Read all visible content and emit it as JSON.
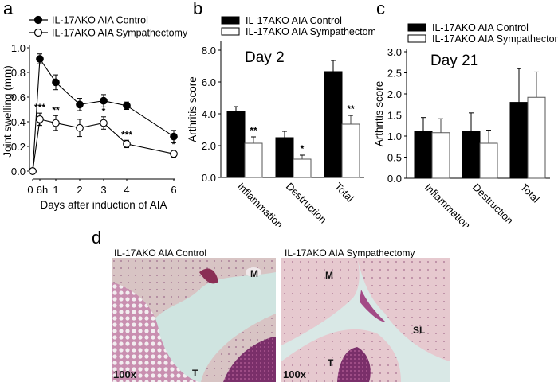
{
  "panels": {
    "a": {
      "letter": "a"
    },
    "b": {
      "letter": "b"
    },
    "c": {
      "letter": "c"
    },
    "d": {
      "letter": "d"
    }
  },
  "legend": {
    "control": "IL-17AKO AIA Control",
    "sympathectomy": "IL-17AKO AIA Sympathectomy"
  },
  "colors": {
    "control": "#000000",
    "sympathectomy": "#ffffff",
    "axis": "#000000"
  },
  "chart_data": [
    {
      "id": "a",
      "type": "line",
      "title": "",
      "xlabel": "Days after induction of AIA",
      "ylabel": "Joint swelling (mm)",
      "x_tick_labels": [
        "0",
        "6h",
        "1",
        "2",
        "3",
        "4",
        "6"
      ],
      "y_tick_labels": [
        "0.0",
        "0.2",
        "0.4",
        "0.6",
        "0.8",
        "1.0"
      ],
      "ylim": [
        0,
        1.0
      ],
      "legend_position": "top-left",
      "series": [
        {
          "name": "IL-17AKO AIA Control",
          "marker": "filled-circle",
          "x": [
            "0",
            "6h",
            "1",
            "2",
            "3",
            "4",
            "6"
          ],
          "values": [
            0.0,
            0.91,
            0.72,
            0.54,
            0.57,
            0.53,
            0.28
          ],
          "errors": [
            0.0,
            0.04,
            0.06,
            0.05,
            0.05,
            0.03,
            0.05
          ]
        },
        {
          "name": "IL-17AKO AIA Sympathectomy",
          "marker": "open-circle",
          "x": [
            "0",
            "6h",
            "1",
            "2",
            "3",
            "4",
            "6"
          ],
          "values": [
            0.0,
            0.42,
            0.39,
            0.35,
            0.39,
            0.22,
            0.14
          ],
          "errors": [
            0.0,
            0.05,
            0.06,
            0.07,
            0.05,
            0.03,
            0.03
          ]
        }
      ],
      "annotations": [
        {
          "x": "6h",
          "text": "***"
        },
        {
          "x": "1",
          "text": "**"
        },
        {
          "x": "3",
          "text": "*"
        },
        {
          "x": "4",
          "text": "***"
        },
        {
          "x": "6",
          "text": "*"
        }
      ]
    },
    {
      "id": "b",
      "type": "bar",
      "title": "Day 2",
      "xlabel": "",
      "ylabel": "Arthritis score",
      "categories": [
        "Inflammation",
        "Destruction",
        "Total"
      ],
      "y_tick_labels": [
        "0.0",
        "2.0",
        "4.0",
        "6.0",
        "8.0"
      ],
      "ylim": [
        0,
        8.0
      ],
      "legend_position": "top",
      "series": [
        {
          "name": "IL-17AKO AIA Control",
          "values": [
            4.15,
            2.5,
            6.65
          ],
          "errors": [
            0.3,
            0.4,
            0.7
          ]
        },
        {
          "name": "IL-17AKO AIA Sympathectomy",
          "values": [
            2.15,
            1.15,
            3.35
          ],
          "errors": [
            0.4,
            0.25,
            0.55
          ]
        }
      ],
      "annotations": [
        {
          "category": "Inflammation",
          "series": 1,
          "text": "**"
        },
        {
          "category": "Destruction",
          "series": 1,
          "text": "*"
        },
        {
          "category": "Total",
          "series": 1,
          "text": "**"
        }
      ]
    },
    {
      "id": "c",
      "type": "bar",
      "title": "Day 21",
      "xlabel": "",
      "ylabel": "Arthritis score",
      "categories": [
        "Inflammation",
        "Destruction",
        "Total"
      ],
      "y_tick_labels": [
        "0.0",
        "0.5",
        "1.0",
        "1.5",
        "2.0",
        "2.5",
        "3.0"
      ],
      "ylim": [
        0,
        3.0
      ],
      "legend_position": "top",
      "series": [
        {
          "name": "IL-17AKO AIA Control",
          "values": [
            1.12,
            1.12,
            1.8
          ],
          "errors": [
            0.32,
            0.43,
            0.8
          ]
        },
        {
          "name": "IL-17AKO AIA Sympathectomy",
          "values": [
            1.08,
            0.83,
            1.92
          ],
          "errors": [
            0.33,
            0.31,
            0.6
          ]
        }
      ],
      "annotations": []
    }
  ],
  "micrographs": [
    {
      "title": "IL-17AKO AIA Control",
      "magnification": "100x",
      "labels": [
        "M",
        "T"
      ]
    },
    {
      "title": "IL-17AKO AIA Sympathectomy",
      "magnification": "100x",
      "labels": [
        "M",
        "SL",
        "T"
      ]
    }
  ]
}
